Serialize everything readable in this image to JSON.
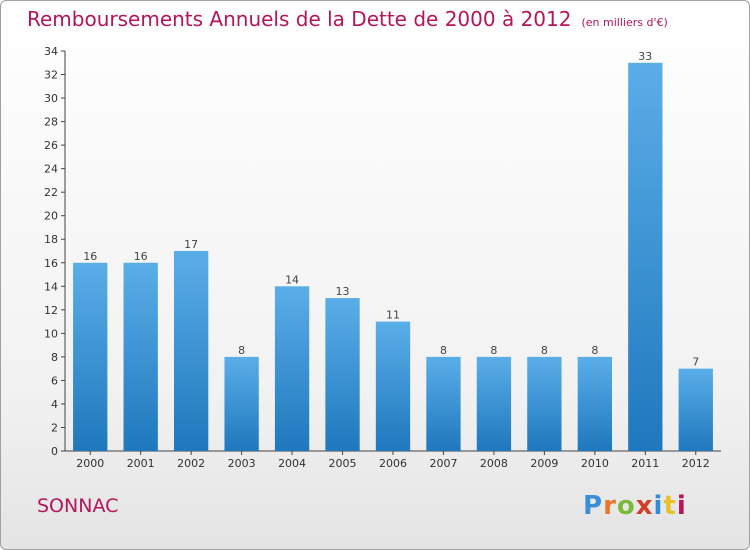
{
  "header": {
    "title": "Remboursements Annuels de la Dette de 2000 à 2012",
    "subtitle": "(en milliers d'€)"
  },
  "commune": "SONNAC",
  "logo": {
    "text": "Proxiti",
    "letter_colors": [
      "#3a8fd6",
      "#e8762b",
      "#7dba3b",
      "#d13f2a",
      "#2f8ed8",
      "#e8c22b",
      "#b5155a"
    ]
  },
  "colors": {
    "bar_top": "#5aaee8",
    "bar_bottom": "#1f78bd",
    "title": "#b5155a"
  },
  "chart_data": {
    "type": "bar",
    "title": "Remboursements Annuels de la Dette de 2000 à 2012",
    "subtitle": "(en milliers d'€)",
    "categories": [
      "2000",
      "2001",
      "2002",
      "2003",
      "2004",
      "2005",
      "2006",
      "2007",
      "2008",
      "2009",
      "2010",
      "2011",
      "2012"
    ],
    "values": [
      16,
      16,
      17,
      8,
      14,
      13,
      11,
      8,
      8,
      8,
      8,
      33,
      7
    ],
    "ylim": [
      0,
      34
    ],
    "yticks": [
      0,
      2,
      4,
      6,
      8,
      10,
      12,
      14,
      16,
      18,
      20,
      22,
      24,
      26,
      28,
      30,
      32,
      34
    ],
    "grid": false
  }
}
